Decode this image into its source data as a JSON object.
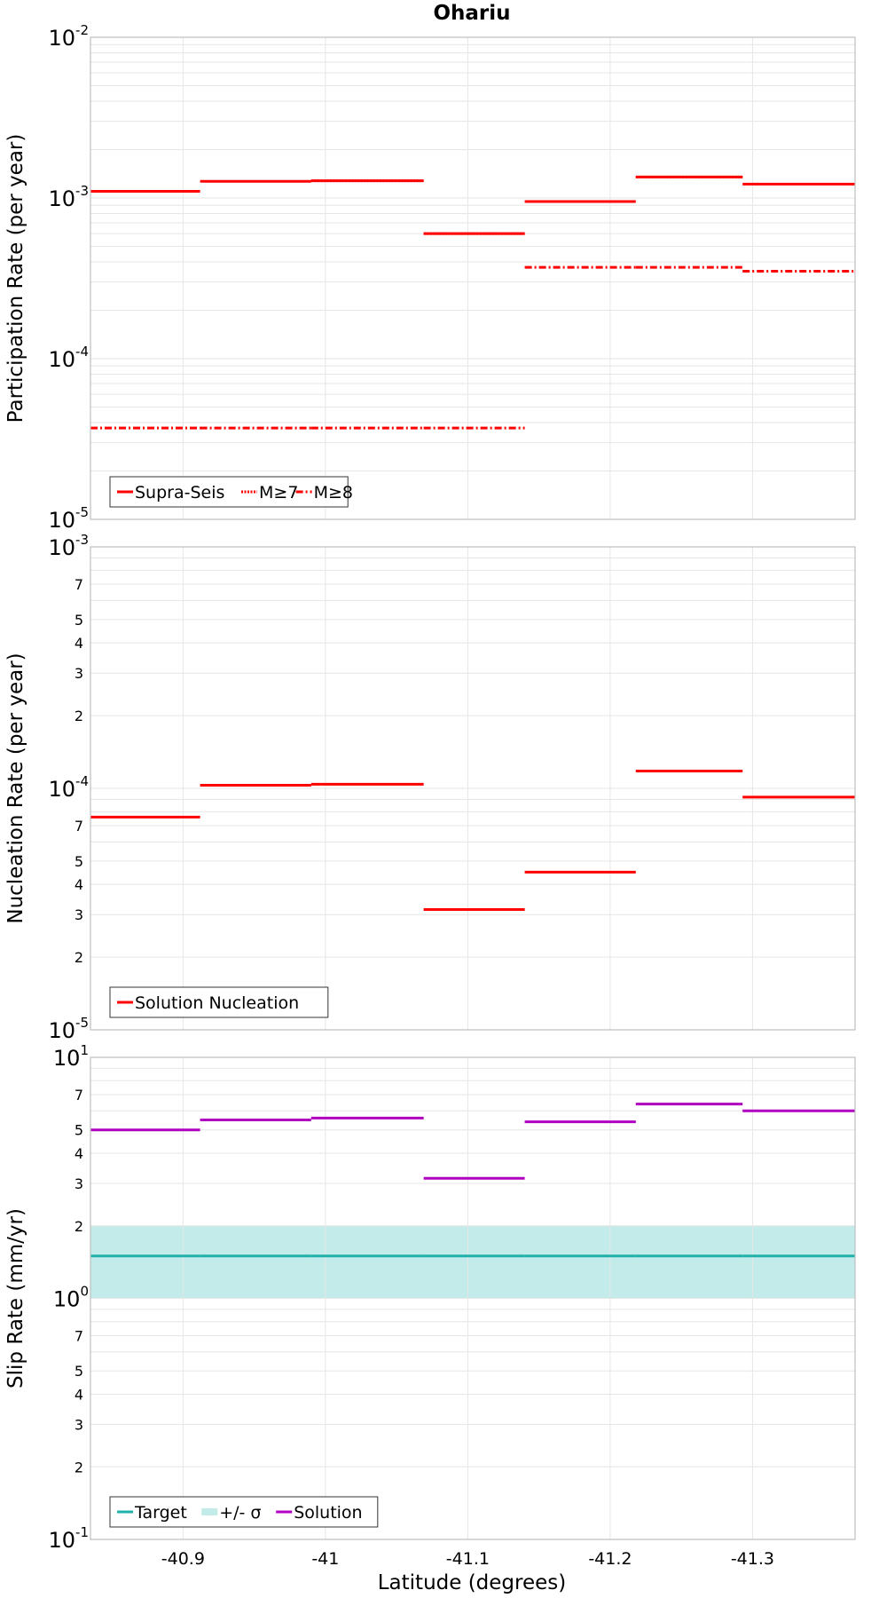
{
  "chart_data": {
    "title": "Ohariu",
    "xlabel": "Latitude (degrees)",
    "x_ticks": [
      -40.9,
      -41,
      -41.1,
      -41.2,
      -41.3
    ],
    "x_tick_labels": [
      "-40.9",
      "-41",
      "-41.1",
      "-41.2",
      "-41.3"
    ],
    "x_range": [
      -40.835,
      -41.372
    ],
    "x_reversed": true,
    "grid": true,
    "segment_edges": [
      -40.835,
      -40.912,
      -40.99,
      -41.069,
      -41.14,
      -41.218,
      -41.293,
      -41.372
    ],
    "panels": [
      {
        "type": "line",
        "ylabel": "Participation Rate (per year)",
        "yscale": "log",
        "ylim": [
          1e-05,
          0.01
        ],
        "major_ticks": [
          {
            "base": "10",
            "exp": "-2",
            "value": 0.01
          },
          {
            "base": "10",
            "exp": "-3",
            "value": 0.001
          },
          {
            "base": "10",
            "exp": "-4",
            "value": 0.0001
          },
          {
            "base": "10",
            "exp": "-5",
            "value": 1e-05
          }
        ],
        "minor_labels": [],
        "legend": {
          "position": "bottom-left",
          "items": [
            {
              "label": "Supra-Seis",
              "color": "#ff0000",
              "style": "solid"
            },
            {
              "label": "M≥7",
              "color": "#ff0000",
              "style": "dotted"
            },
            {
              "label": "M≥8",
              "color": "#ff0000",
              "style": "dashdot"
            }
          ]
        },
        "series": [
          {
            "name": "Supra-Seis",
            "color": "#ff0000",
            "style": "solid",
            "values": [
              0.0011,
              0.00127,
              0.00128,
              0.0006,
              0.00095,
              0.00135,
              0.00122
            ]
          },
          {
            "name": "M≥7",
            "color": "#ff0000",
            "style": "dotted",
            "values": [
              null,
              null,
              0.00128,
              0.0006,
              null,
              0.00135,
              null
            ]
          },
          {
            "name": "M≥8",
            "color": "#ff0000",
            "style": "dashdot",
            "values": [
              3.7e-05,
              3.7e-05,
              3.7e-05,
              3.7e-05,
              0.00037,
              0.00037,
              0.00035
            ]
          }
        ]
      },
      {
        "type": "line",
        "ylabel": "Nucleation Rate (per year)",
        "yscale": "log",
        "ylim": [
          1e-05,
          0.001
        ],
        "major_ticks": [
          {
            "base": "10",
            "exp": "-3",
            "value": 0.001
          },
          {
            "base": "10",
            "exp": "-4",
            "value": 0.0001
          },
          {
            "base": "10",
            "exp": "-5",
            "value": 1e-05
          }
        ],
        "minor_labels": [
          {
            "label": "7",
            "value": 0.0007
          },
          {
            "label": "5",
            "value": 0.0005
          },
          {
            "label": "4",
            "value": 0.0004
          },
          {
            "label": "3",
            "value": 0.0003
          },
          {
            "label": "2",
            "value": 0.0002
          },
          {
            "label": "7",
            "value": 7e-05
          },
          {
            "label": "5",
            "value": 5e-05
          },
          {
            "label": "4",
            "value": 4e-05
          },
          {
            "label": "3",
            "value": 3e-05
          },
          {
            "label": "2",
            "value": 2e-05
          }
        ],
        "legend": {
          "position": "bottom-left",
          "items": [
            {
              "label": "Solution Nucleation",
              "color": "#ff0000",
              "style": "solid"
            }
          ]
        },
        "series": [
          {
            "name": "Solution Nucleation",
            "color": "#ff0000",
            "style": "solid",
            "values": [
              7.6e-05,
              0.000103,
              0.000104,
              3.15e-05,
              4.5e-05,
              0.000118,
              9.2e-05
            ]
          }
        ]
      },
      {
        "type": "line",
        "ylabel": "Slip Rate (mm/yr)",
        "yscale": "log",
        "ylim": [
          0.1,
          10
        ],
        "major_ticks": [
          {
            "base": "10",
            "exp": "1",
            "value": 10
          },
          {
            "base": "10",
            "exp": "0",
            "value": 1
          },
          {
            "base": "10",
            "exp": "-1",
            "value": 0.1
          }
        ],
        "minor_labels": [
          {
            "label": "7",
            "value": 7
          },
          {
            "label": "5",
            "value": 5
          },
          {
            "label": "4",
            "value": 4
          },
          {
            "label": "3",
            "value": 3
          },
          {
            "label": "2",
            "value": 2
          },
          {
            "label": "7",
            "value": 0.7
          },
          {
            "label": "5",
            "value": 0.5
          },
          {
            "label": "4",
            "value": 0.4
          },
          {
            "label": "3",
            "value": 0.3
          },
          {
            "label": "2",
            "value": 0.2
          }
        ],
        "legend": {
          "position": "bottom-left",
          "items": [
            {
              "label": "Target",
              "color": "#20b2aa",
              "style": "solid"
            },
            {
              "label": "+/- σ",
              "color": "#c2ebe9",
              "style": "band"
            },
            {
              "label": "Solution",
              "color": "#b000c0",
              "style": "solid"
            }
          ]
        },
        "band": {
          "name": "+/- σ",
          "color": "#c2ebe9",
          "lower": 1.0,
          "upper": 2.0
        },
        "series": [
          {
            "name": "Target",
            "color": "#20b2aa",
            "style": "solid",
            "values": [
              1.5,
              1.5,
              1.5,
              1.5,
              1.5,
              1.5,
              1.5
            ]
          },
          {
            "name": "Solution",
            "color": "#b000c0",
            "style": "solid",
            "values": [
              5.0,
              5.5,
              5.6,
              3.15,
              5.4,
              6.4,
              6.0
            ]
          }
        ]
      }
    ]
  }
}
